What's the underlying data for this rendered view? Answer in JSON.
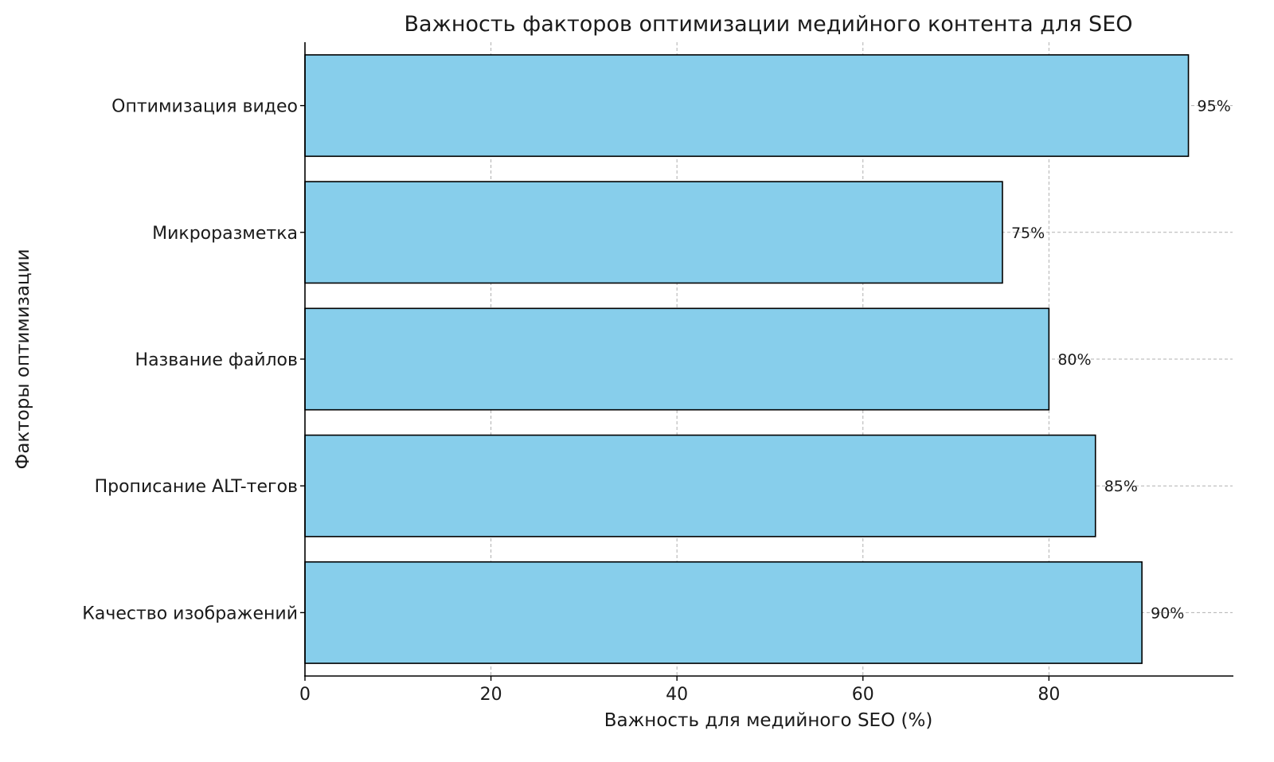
{
  "chart_data": {
    "type": "bar",
    "orientation": "horizontal",
    "title": "Важность факторов оптимизации медийного контента для SEO",
    "xlabel": "Важность для медийного SEO (%)",
    "ylabel": "Факторы оптимизации",
    "categories": [
      "Качество изображений",
      "Прописание ALT-тегов",
      "Название файлов",
      "Микроразметка",
      "Оптимизация видео"
    ],
    "values": [
      90,
      85,
      80,
      75,
      95
    ],
    "data_labels": [
      "90%",
      "85%",
      "80%",
      "75%",
      "95%"
    ],
    "xlim": [
      0,
      99.75
    ],
    "xticks": [
      0,
      20,
      40,
      60,
      80
    ],
    "grid": true,
    "bar_color": "#87CEEB",
    "edge_color": "#000000"
  }
}
